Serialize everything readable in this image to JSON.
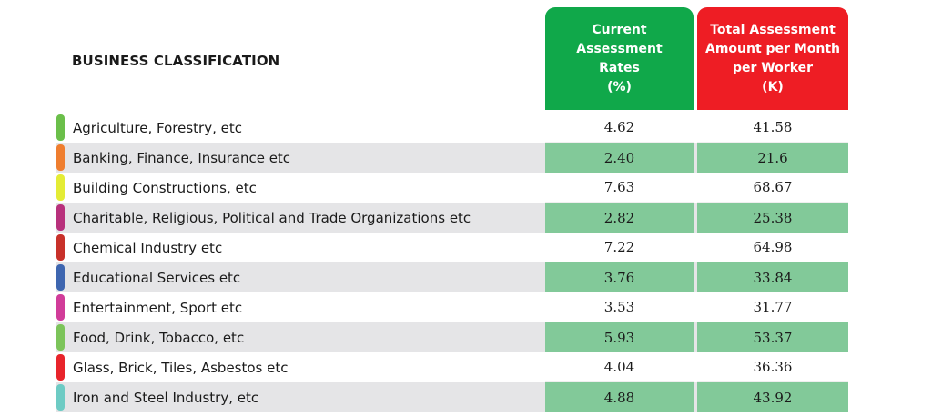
{
  "title": "BUSINESS CLASSIFICATION",
  "headers": {
    "rate": [
      "Current",
      "Assessment",
      "Rates",
      "(%)"
    ],
    "amount": [
      "Total Assessment",
      "Amount per Month",
      "per Worker",
      "(K)"
    ],
    "rate_color": "#10a84a",
    "amount_color": "#ee1d24"
  },
  "rows": [
    {
      "label": "Agriculture, Forestry, etc",
      "rate": "4.62",
      "amount": "41.58",
      "color": "#6bbf4a"
    },
    {
      "label": "Banking, Finance, Insurance etc",
      "rate": "2.40",
      "amount": "21.6",
      "color": "#ef7e2f"
    },
    {
      "label": "Building Constructions, etc",
      "rate": "7.63",
      "amount": "68.67",
      "color": "#e4ec35"
    },
    {
      "label": "Charitable, Religious, Political and Trade Organizations etc",
      "rate": "2.82",
      "amount": "25.38",
      "color": "#b8317c"
    },
    {
      "label": "Chemical Industry etc",
      "rate": "7.22",
      "amount": "64.98",
      "color": "#c8312a"
    },
    {
      "label": "Educational Services etc",
      "rate": "3.76",
      "amount": "33.84",
      "color": "#3e66b0"
    },
    {
      "label": "Entertainment, Sport etc",
      "rate": "3.53",
      "amount": "31.77",
      "color": "#d13c99"
    },
    {
      "label": "Food, Drink, Tobacco, etc",
      "rate": "5.93",
      "amount": "53.37",
      "color": "#7cc45a"
    },
    {
      "label": "Glass, Brick, Tiles, Asbestos etc",
      "rate": "4.04",
      "amount": "36.36",
      "color": "#e8242b"
    },
    {
      "label": "Iron and Steel Industry, etc",
      "rate": "4.88",
      "amount": "43.92",
      "color": "#6dcbc4"
    }
  ]
}
